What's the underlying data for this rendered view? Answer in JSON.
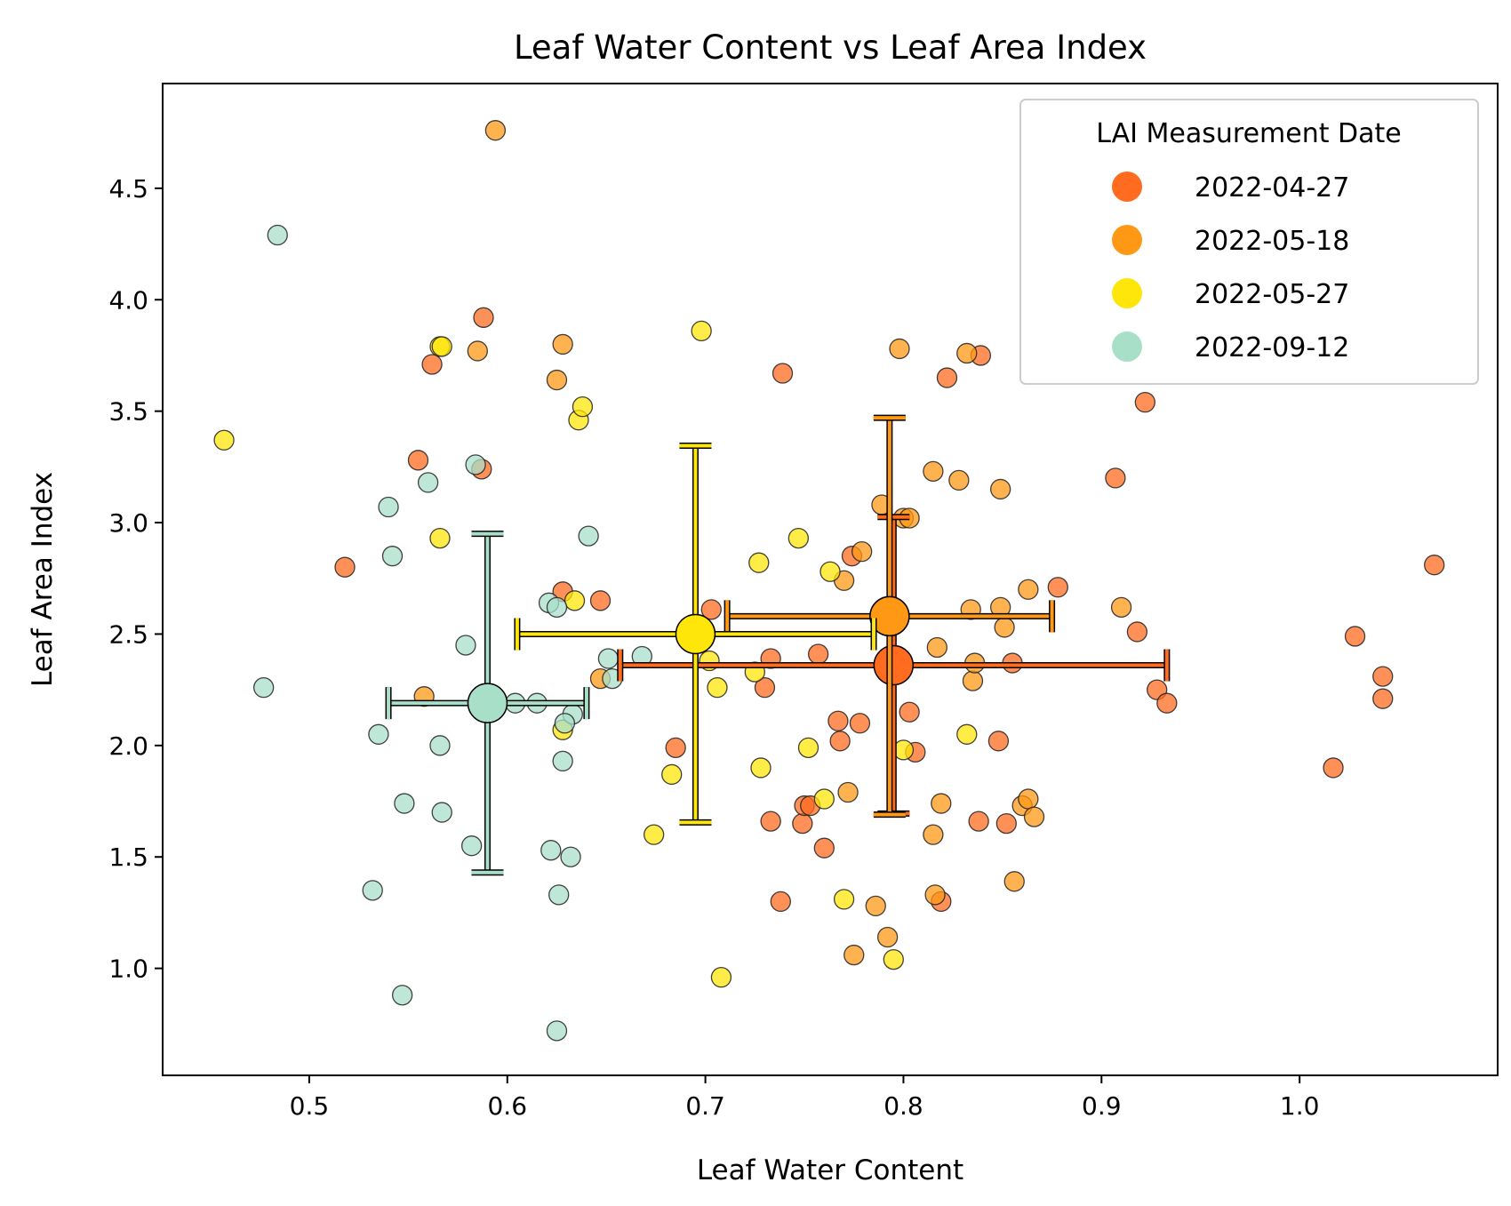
{
  "chart_data": {
    "type": "scatter",
    "title": "Leaf Water Content vs Leaf Area Index",
    "xlabel": "Leaf Water Content",
    "ylabel": "Leaf Area Index",
    "xlim": [
      0.426,
      1.1
    ],
    "ylim": [
      0.52,
      4.97
    ],
    "xticks": [
      {
        "value": 0.5,
        "label": "0.5"
      },
      {
        "value": 0.6,
        "label": "0.6"
      },
      {
        "value": 0.7,
        "label": "0.7"
      },
      {
        "value": 0.8,
        "label": "0.8"
      },
      {
        "value": 0.9,
        "label": "0.9"
      },
      {
        "value": 1.0,
        "label": "1.0"
      }
    ],
    "yticks": [
      {
        "value": 1.0,
        "label": "1.0"
      },
      {
        "value": 1.5,
        "label": "1.5"
      },
      {
        "value": 2.0,
        "label": "2.0"
      },
      {
        "value": 2.5,
        "label": "2.5"
      },
      {
        "value": 3.0,
        "label": "3.0"
      },
      {
        "value": 3.5,
        "label": "3.5"
      },
      {
        "value": 4.0,
        "label": "4.0"
      },
      {
        "value": 4.5,
        "label": "4.5"
      }
    ],
    "grid": false,
    "legend": {
      "title": "LAI Measurement Date",
      "placement": "top-right"
    },
    "series": [
      {
        "name": "2022-04-27",
        "color": "#ff6b1f",
        "points": [
          [
            0.518,
            2.8
          ],
          [
            0.555,
            3.28
          ],
          [
            0.562,
            3.71
          ],
          [
            0.588,
            3.92
          ],
          [
            0.587,
            3.24
          ],
          [
            0.628,
            2.69
          ],
          [
            0.647,
            2.65
          ],
          [
            0.685,
            1.99
          ],
          [
            0.703,
            2.61
          ],
          [
            0.73,
            2.26
          ],
          [
            0.733,
            2.39
          ],
          [
            0.733,
            1.66
          ],
          [
            0.738,
            1.3
          ],
          [
            0.739,
            3.67
          ],
          [
            0.749,
            1.65
          ],
          [
            0.75,
            1.73
          ],
          [
            0.753,
            1.73
          ],
          [
            0.757,
            2.41
          ],
          [
            0.76,
            1.54
          ],
          [
            0.767,
            2.11
          ],
          [
            0.768,
            2.02
          ],
          [
            0.774,
            2.85
          ],
          [
            0.778,
            2.1
          ],
          [
            0.803,
            2.15
          ],
          [
            0.806,
            1.97
          ],
          [
            0.819,
            1.3
          ],
          [
            0.822,
            3.65
          ],
          [
            0.838,
            1.66
          ],
          [
            0.839,
            3.75
          ],
          [
            0.848,
            2.02
          ],
          [
            0.852,
            1.65
          ],
          [
            0.855,
            2.37
          ],
          [
            0.878,
            2.71
          ],
          [
            0.907,
            3.2
          ],
          [
            0.918,
            2.51
          ],
          [
            0.922,
            3.54
          ],
          [
            0.928,
            2.25
          ],
          [
            0.933,
            2.19
          ],
          [
            1.017,
            1.9
          ],
          [
            1.028,
            2.49
          ],
          [
            1.042,
            2.31
          ],
          [
            1.042,
            2.21
          ],
          [
            1.068,
            2.81
          ]
        ],
        "mean": [
          0.795,
          2.36
        ],
        "x_err": 0.138,
        "y_err": 0.665
      },
      {
        "name": "2022-05-18",
        "color": "#ff9815",
        "points": [
          [
            0.558,
            2.22
          ],
          [
            0.585,
            3.77
          ],
          [
            0.594,
            4.76
          ],
          [
            0.625,
            3.64
          ],
          [
            0.628,
            3.8
          ],
          [
            0.647,
            2.3
          ],
          [
            0.779,
            2.87
          ],
          [
            0.786,
            1.28
          ],
          [
            0.789,
            3.08
          ],
          [
            0.792,
            1.14
          ],
          [
            0.798,
            3.78
          ],
          [
            0.8,
            3.02
          ],
          [
            0.803,
            3.02
          ],
          [
            0.815,
            1.6
          ],
          [
            0.815,
            3.23
          ],
          [
            0.817,
            2.44
          ],
          [
            0.819,
            1.74
          ],
          [
            0.828,
            3.19
          ],
          [
            0.832,
            3.76
          ],
          [
            0.835,
            2.29
          ],
          [
            0.836,
            2.37
          ],
          [
            0.849,
            3.15
          ],
          [
            0.849,
            2.62
          ],
          [
            0.851,
            2.53
          ],
          [
            0.856,
            1.39
          ],
          [
            0.86,
            1.73
          ],
          [
            0.863,
            1.76
          ],
          [
            0.863,
            2.7
          ],
          [
            0.866,
            1.68
          ],
          [
            0.91,
            2.62
          ],
          [
            0.775,
            1.06
          ],
          [
            0.77,
            2.74
          ],
          [
            0.816,
            1.33
          ],
          [
            0.834,
            2.61
          ],
          [
            0.772,
            1.79
          ]
        ],
        "mean": [
          0.793,
          2.58
        ],
        "x_err": 0.082,
        "y_err": 0.89
      },
      {
        "name": "2022-05-27",
        "color": "#ffe60a",
        "points": [
          [
            0.457,
            3.37
          ],
          [
            0.566,
            3.79
          ],
          [
            0.566,
            2.93
          ],
          [
            0.567,
            3.79
          ],
          [
            0.628,
            2.07
          ],
          [
            0.634,
            2.65
          ],
          [
            0.636,
            3.46
          ],
          [
            0.638,
            3.52
          ],
          [
            0.674,
            1.6
          ],
          [
            0.683,
            1.87
          ],
          [
            0.698,
            3.86
          ],
          [
            0.702,
            2.38
          ],
          [
            0.706,
            2.26
          ],
          [
            0.708,
            0.96
          ],
          [
            0.725,
            2.33
          ],
          [
            0.727,
            2.82
          ],
          [
            0.728,
            1.9
          ],
          [
            0.747,
            2.93
          ],
          [
            0.752,
            1.99
          ],
          [
            0.76,
            1.76
          ],
          [
            0.763,
            2.78
          ],
          [
            0.77,
            1.31
          ],
          [
            0.795,
            1.04
          ],
          [
            0.8,
            1.98
          ],
          [
            0.832,
            2.05
          ]
        ],
        "mean": [
          0.695,
          2.5
        ],
        "x_err": 0.09,
        "y_err": 0.845
      },
      {
        "name": "2022-09-12",
        "color": "#a8dfc9",
        "points": [
          [
            0.477,
            2.26
          ],
          [
            0.484,
            4.29
          ],
          [
            0.532,
            1.35
          ],
          [
            0.535,
            2.05
          ],
          [
            0.54,
            3.07
          ],
          [
            0.542,
            2.85
          ],
          [
            0.547,
            0.88
          ],
          [
            0.548,
            1.74
          ],
          [
            0.56,
            3.18
          ],
          [
            0.566,
            2.0
          ],
          [
            0.567,
            1.7
          ],
          [
            0.579,
            2.45
          ],
          [
            0.582,
            1.55
          ],
          [
            0.584,
            3.26
          ],
          [
            0.604,
            2.19
          ],
          [
            0.615,
            2.19
          ],
          [
            0.621,
            2.64
          ],
          [
            0.622,
            1.53
          ],
          [
            0.625,
            2.62
          ],
          [
            0.625,
            0.72
          ],
          [
            0.626,
            1.33
          ],
          [
            0.628,
            1.93
          ],
          [
            0.632,
            1.5
          ],
          [
            0.633,
            2.14
          ],
          [
            0.641,
            2.94
          ],
          [
            0.653,
            2.3
          ],
          [
            0.651,
            2.39
          ],
          [
            0.668,
            2.4
          ],
          [
            0.629,
            2.1
          ]
        ],
        "mean": [
          0.59,
          2.19
        ],
        "x_err": 0.05,
        "y_err": 0.76
      }
    ]
  }
}
